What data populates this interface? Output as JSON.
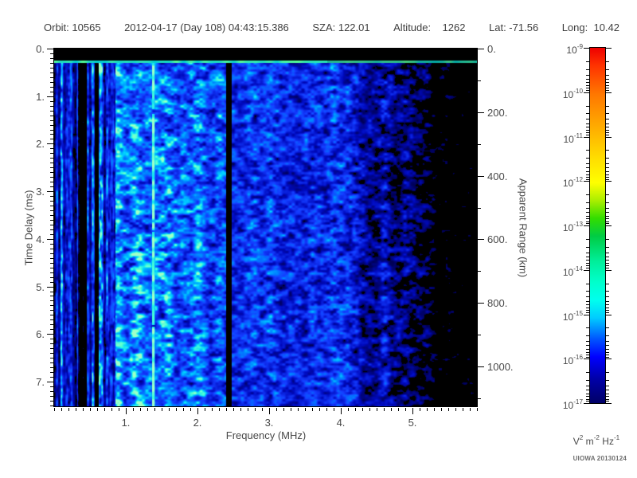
{
  "header": {
    "segments": [
      "Orbit: 10565",
      "2012-04-17 (Day 108) 04:43:15.386",
      "SZA: 122.01",
      "Altitude:    1262",
      "Lat: -71.56",
      "Long:  10.42"
    ]
  },
  "footer": {
    "credit": "UIOWA 20130124"
  },
  "chart_data": {
    "type": "heatmap",
    "description": "Radar sounder ionogram spectrogram: received spectral density vs frequency and time delay. Blue noise background brightest below 1 MHz with vertical striations, a bright cyan-green horizontal echo line near 0.27 ms delay, a bright narrowband interference line near 1.38 MHz, a black quiet band near 2.4 MHz, and noise fading to black above ~4 MHz.",
    "xlabel": "Frequency (MHz)",
    "ylabel_left": "Time Delay (ms)",
    "ylabel_right": "Apparent Range (km)",
    "x_range_mhz": [
      0.0,
      5.9
    ],
    "y_range_ms": [
      0.0,
      7.52
    ],
    "y2_range_km": [
      0,
      1125
    ],
    "x_tick_values": [
      1,
      2,
      3,
      4,
      5
    ],
    "x_tick_labels": [
      "1.",
      "2.",
      "3.",
      "4.",
      "5."
    ],
    "x_minor_step_mhz": 0.1,
    "y_tick_values": [
      0,
      1,
      2,
      3,
      4,
      5,
      6,
      7
    ],
    "y_tick_labels": [
      "0.",
      "1.",
      "2.",
      "3.",
      "4.",
      "5.",
      "6.",
      "7."
    ],
    "y_minor_step_ms": 0.1,
    "y2_tick_values": [
      0,
      200,
      400,
      600,
      800,
      1000
    ],
    "y2_tick_labels": [
      "0.",
      "200.",
      "400.",
      "600.",
      "800.",
      "1000."
    ],
    "y2_minor_step_km": 100,
    "colorbar": {
      "scale": "log10",
      "max": "1e-9",
      "min": "1e-17",
      "tick_exponents": [
        -9,
        -10,
        -11,
        -12,
        -13,
        -14,
        -15,
        -16,
        -17
      ],
      "units_parts": [
        [
          "V",
          "2"
        ],
        [
          "m",
          "-2"
        ],
        [
          "Hz",
          "-1"
        ]
      ],
      "gradient_stops": [
        [
          0.0,
          "#ee0000"
        ],
        [
          0.05,
          "#ff3300"
        ],
        [
          0.13,
          "#ff7700"
        ],
        [
          0.22,
          "#ffaa00"
        ],
        [
          0.31,
          "#ffdd00"
        ],
        [
          0.38,
          "#ffff00"
        ],
        [
          0.43,
          "#aaee00"
        ],
        [
          0.48,
          "#33dd00"
        ],
        [
          0.53,
          "#00cc44"
        ],
        [
          0.6,
          "#00ee99"
        ],
        [
          0.66,
          "#00ffcc"
        ],
        [
          0.71,
          "#00ffee"
        ],
        [
          0.76,
          "#00ccff"
        ],
        [
          0.82,
          "#0055ff"
        ],
        [
          0.87,
          "#0000ff"
        ],
        [
          0.93,
          "#0000aa"
        ],
        [
          1.0,
          "#000066"
        ]
      ]
    },
    "heatmap_colormap": [
      [
        0.0,
        [
          0,
          0,
          80
        ]
      ],
      [
        0.22,
        [
          0,
          10,
          190
        ]
      ],
      [
        0.45,
        [
          20,
          60,
          255
        ]
      ],
      [
        0.62,
        [
          0,
          130,
          255
        ]
      ],
      [
        0.78,
        [
          0,
          210,
          255
        ]
      ],
      [
        0.9,
        [
          70,
          255,
          215
        ]
      ],
      [
        1.0,
        [
          160,
          255,
          200
        ]
      ]
    ],
    "features": {
      "top_blackout_ms": [
        0.0,
        0.235
      ],
      "surface_line_ms": [
        0.235,
        0.3
      ],
      "interference_line_mhz": 1.38,
      "quiet_band_mhz": [
        2.39,
        2.47
      ],
      "striation_band_mhz": [
        0.0,
        0.85
      ],
      "dark_lanes_mhz": [
        [
          0.33,
          0.45
        ],
        [
          0.56,
          0.62
        ]
      ],
      "noise_fade_start_mhz": 3.6
    }
  }
}
